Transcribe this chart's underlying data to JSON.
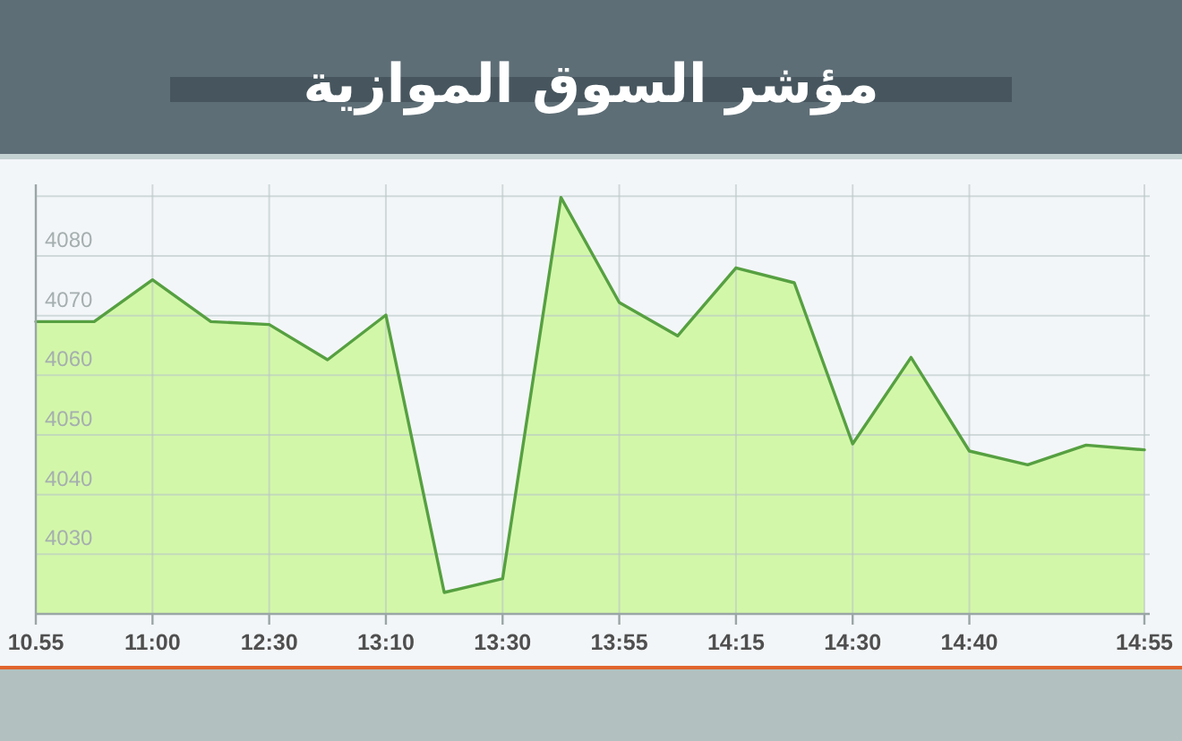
{
  "chart_data": {
    "type": "area",
    "title": "مؤشر السوق الموازية",
    "categories": [
      "10.55",
      null,
      "11:00",
      null,
      "12:30",
      null,
      "13:10",
      null,
      "13:30",
      null,
      "13:55",
      null,
      "14:15",
      null,
      "14:30",
      null,
      "14:40",
      null,
      null,
      "14:55"
    ],
    "values": [
      4069,
      4069,
      4076,
      4069,
      4068.5,
      4062.6,
      4070.1,
      4023.6,
      4025.9,
      4089.8,
      4072.2,
      4066.6,
      4078,
      4075.5,
      4048.5,
      4063,
      4047.3,
      4045,
      4048.3,
      4047.5
    ],
    "color": "#d3f7a9",
    "ylim": [
      4020,
      4092
    ],
    "yticks": [
      4030,
      4040,
      4050,
      4060,
      4070,
      4080,
      {
        "value": 4090,
        "label": null
      }
    ],
    "grid": true
  }
}
